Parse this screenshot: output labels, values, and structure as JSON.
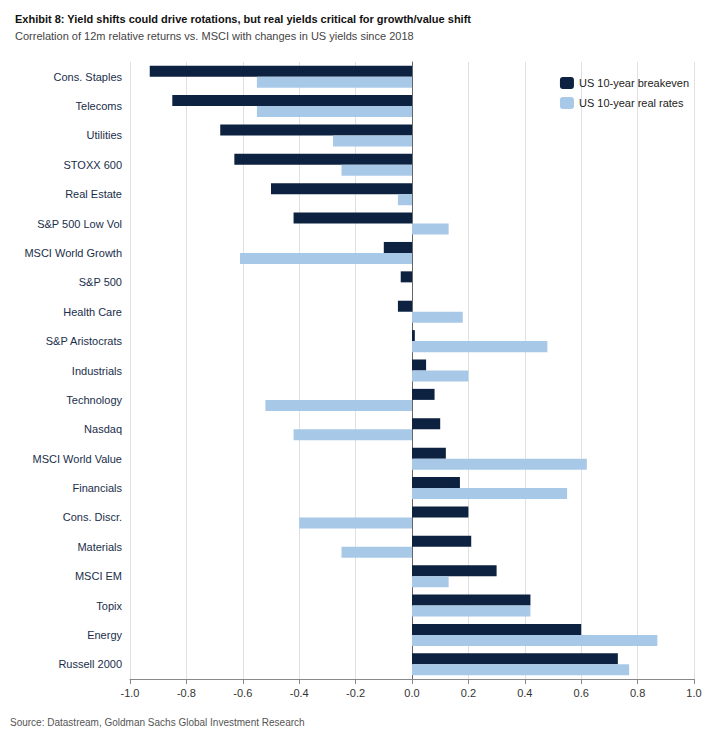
{
  "chart_data": {
    "type": "bar",
    "orientation": "horizontal",
    "title": "Exhibit 8: Yield shifts could drive rotations, but real yields critical for growth/value shift",
    "subtitle": "Correlation of 12m relative returns vs. MSCI with changes in US yields since 2018",
    "annotations": [
      "Source: Datastream, Goldman Sachs Global Investment Research"
    ],
    "categories": [
      "Cons. Staples",
      "Telecoms",
      "Utilities",
      "STOXX 600",
      "Real Estate",
      "S&P 500 Low Vol",
      "MSCI World Growth",
      "S&P 500",
      "Health Care",
      "S&P Aristocrats",
      "Industrials",
      "Technology",
      "Nasdaq",
      "MSCI World Value",
      "Financials",
      "Cons. Discr.",
      "Materials",
      "MSCI EM",
      "Topix",
      "Energy",
      "Russell 2000"
    ],
    "series": [
      {
        "name": "US 10-year breakeven",
        "color": "#0d2240",
        "values": [
          -0.93,
          -0.85,
          -0.68,
          -0.63,
          -0.5,
          -0.42,
          -0.1,
          -0.04,
          -0.05,
          0.01,
          0.05,
          0.08,
          0.1,
          0.12,
          0.17,
          0.2,
          0.21,
          0.3,
          0.42,
          0.6,
          0.73
        ]
      },
      {
        "name": "US 10-year real rates",
        "color": "#a8c8e8",
        "values": [
          -0.55,
          -0.55,
          -0.28,
          -0.25,
          -0.05,
          0.13,
          -0.61,
          0.0,
          0.18,
          0.48,
          0.2,
          -0.52,
          -0.42,
          0.62,
          0.55,
          -0.4,
          -0.25,
          0.13,
          0.42,
          0.87,
          0.77
        ]
      }
    ],
    "xlim": [
      -1.0,
      1.0
    ],
    "xticks": [
      {
        "value": -1.0,
        "label": "-1.0"
      },
      -0.8,
      -0.6,
      -0.4,
      -0.2,
      {
        "value": 0.0,
        "label": "0.0"
      },
      0.2,
      0.4,
      0.6,
      0.8,
      {
        "value": 1.0,
        "label": "1.0"
      }
    ],
    "grid": true,
    "legend": "upper right"
  }
}
